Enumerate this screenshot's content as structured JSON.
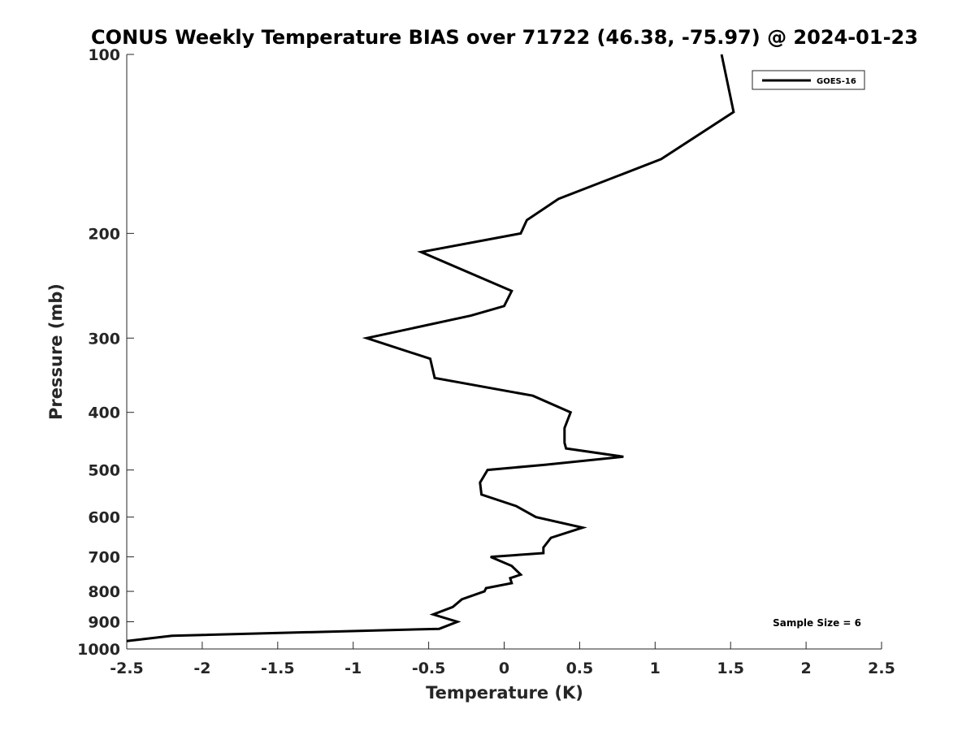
{
  "chart_data": {
    "type": "line",
    "title": "CONUS Weekly Temperature BIAS over 71722 (46.38, -75.97) @ 2024-01-23",
    "xlabel": "Temperature (K)",
    "ylabel": "Pressure (mb)",
    "xlim": [
      -2.5,
      2.5
    ],
    "ylim": [
      1000,
      100
    ],
    "y_scale": "log",
    "y_reversed": true,
    "x_ticks": [
      "-2.5",
      "-2",
      "-1.5",
      "-1",
      "-0.5",
      "0",
      "0.5",
      "1",
      "1.5",
      "2",
      "2.5"
    ],
    "x_tick_values": [
      -2.5,
      -2,
      -1.5,
      -1,
      -0.5,
      0,
      0.5,
      1,
      1.5,
      2,
      2.5
    ],
    "y_ticks": [
      "100",
      "200",
      "300",
      "400",
      "500",
      "600",
      "700",
      "800",
      "900",
      "1000"
    ],
    "y_tick_values": [
      100,
      200,
      300,
      400,
      500,
      600,
      700,
      800,
      900,
      1000
    ],
    "grid": false,
    "legend_position": "top-right",
    "line_color": "#000000",
    "annotation": "Sample Size = 6",
    "series": [
      {
        "name": "GOES-16",
        "points": [
          {
            "x": 1.44,
            "p": 100
          },
          {
            "x": 1.52,
            "p": 125
          },
          {
            "x": 1.04,
            "p": 150
          },
          {
            "x": 0.36,
            "p": 175
          },
          {
            "x": 0.15,
            "p": 190
          },
          {
            "x": 0.11,
            "p": 200
          },
          {
            "x": -0.55,
            "p": 215
          },
          {
            "x": 0.05,
            "p": 250
          },
          {
            "x": 0.0,
            "p": 265
          },
          {
            "x": -0.22,
            "p": 275
          },
          {
            "x": -0.91,
            "p": 300
          },
          {
            "x": -0.49,
            "p": 325
          },
          {
            "x": -0.46,
            "p": 350
          },
          {
            "x": 0.19,
            "p": 375
          },
          {
            "x": 0.44,
            "p": 400
          },
          {
            "x": 0.4,
            "p": 425
          },
          {
            "x": 0.4,
            "p": 450
          },
          {
            "x": 0.41,
            "p": 460
          },
          {
            "x": 0.79,
            "p": 475
          },
          {
            "x": 0.27,
            "p": 490
          },
          {
            "x": -0.11,
            "p": 500
          },
          {
            "x": -0.16,
            "p": 525
          },
          {
            "x": -0.15,
            "p": 550
          },
          {
            "x": 0.08,
            "p": 575
          },
          {
            "x": 0.21,
            "p": 600
          },
          {
            "x": 0.52,
            "p": 625
          },
          {
            "x": 0.31,
            "p": 650
          },
          {
            "x": 0.26,
            "p": 675
          },
          {
            "x": 0.26,
            "p": 690
          },
          {
            "x": -0.09,
            "p": 700
          },
          {
            "x": 0.05,
            "p": 725
          },
          {
            "x": 0.11,
            "p": 750
          },
          {
            "x": 0.04,
            "p": 760
          },
          {
            "x": 0.05,
            "p": 775
          },
          {
            "x": -0.12,
            "p": 790
          },
          {
            "x": -0.13,
            "p": 800
          },
          {
            "x": -0.28,
            "p": 825
          },
          {
            "x": -0.34,
            "p": 850
          },
          {
            "x": -0.47,
            "p": 875
          },
          {
            "x": -0.31,
            "p": 900
          },
          {
            "x": -0.43,
            "p": 925
          },
          {
            "x": -2.2,
            "p": 950
          },
          {
            "x": -2.5,
            "p": 970
          }
        ]
      }
    ]
  }
}
